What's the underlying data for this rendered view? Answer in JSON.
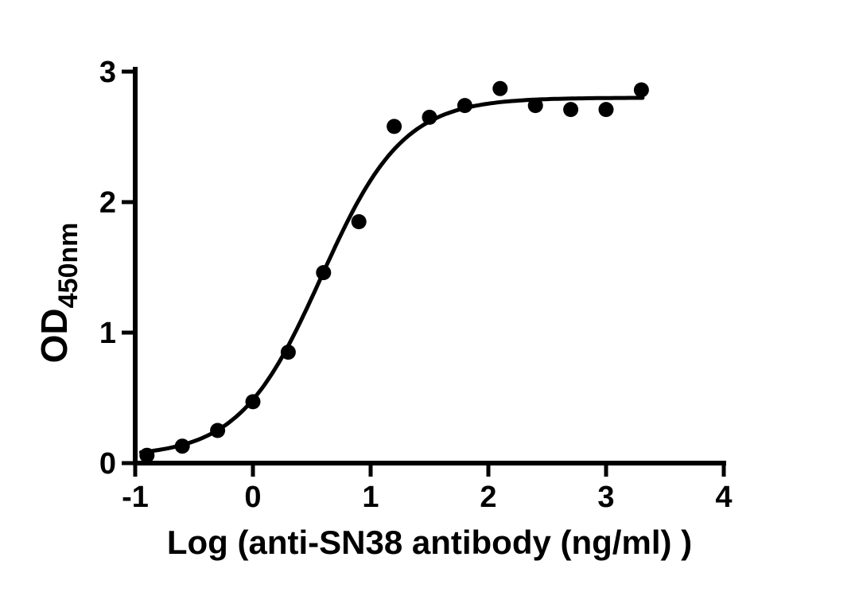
{
  "figure": {
    "background": "#ffffff",
    "ink_color": "#000000"
  },
  "chart_data": {
    "type": "scatter",
    "title": "",
    "xlabel": "Log (anti-SN38 antibody (ng/ml) )",
    "ylabel": "OD450nm",
    "ylabel_main": "OD",
    "ylabel_sub": "450nm",
    "xlim": [
      -1,
      4
    ],
    "ylim": [
      0,
      3
    ],
    "x_ticks": [
      "-1",
      "0",
      "1",
      "2",
      "3",
      "4"
    ],
    "y_ticks": [
      "0",
      "1",
      "2",
      "3"
    ],
    "grid": false,
    "legend": "none",
    "marker": "filled-circle",
    "points": [
      {
        "x": -0.9,
        "y": 0.06
      },
      {
        "x": -0.6,
        "y": 0.13
      },
      {
        "x": -0.3,
        "y": 0.25
      },
      {
        "x": 0.0,
        "y": 0.47
      },
      {
        "x": 0.3,
        "y": 0.85
      },
      {
        "x": 0.6,
        "y": 1.46
      },
      {
        "x": 0.9,
        "y": 1.85
      },
      {
        "x": 1.2,
        "y": 2.58
      },
      {
        "x": 1.5,
        "y": 2.65
      },
      {
        "x": 1.8,
        "y": 2.74
      },
      {
        "x": 2.1,
        "y": 2.87
      },
      {
        "x": 2.4,
        "y": 2.74
      },
      {
        "x": 2.7,
        "y": 2.71
      },
      {
        "x": 3.0,
        "y": 2.71
      },
      {
        "x": 3.3,
        "y": 2.86
      }
    ],
    "fit_curve": {
      "model": "4PL-sigmoid",
      "bottom": 0.05,
      "top": 2.8,
      "logEC50": 0.58,
      "hill": 1.25,
      "x_start": -0.95,
      "x_end": 3.32
    }
  }
}
